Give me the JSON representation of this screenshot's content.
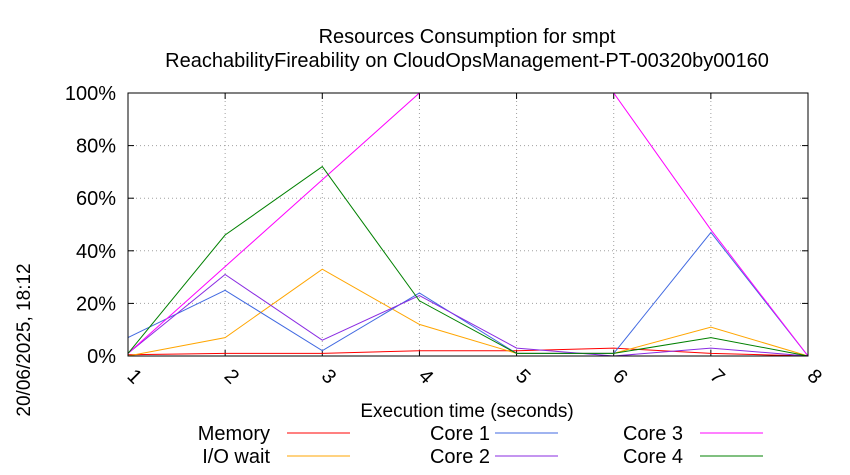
{
  "chart_data": {
    "type": "line",
    "title_line1": "Resources Consumption for smpt",
    "title_line2": "ReachabilityFireability on CloudOpsManagement-PT-00320by00160",
    "xlabel": "Execution time (seconds)",
    "side_label": "20/06/2025, 18:12",
    "x": [
      1,
      2,
      3,
      4,
      5,
      6,
      7,
      8
    ],
    "xlim": [
      1,
      8
    ],
    "ylim": [
      0,
      100
    ],
    "y_ticks": [
      "0%",
      "20%",
      "40%",
      "60%",
      "80%",
      "100%"
    ],
    "x_ticks": [
      "1",
      "2",
      "3",
      "4",
      "5",
      "6",
      "7",
      "8"
    ],
    "grid": true,
    "legend_position": "bottom",
    "series": [
      {
        "name": "Memory",
        "color": "#ff0000",
        "values": [
          0.5,
          1,
          1,
          2,
          2,
          3,
          1,
          0
        ]
      },
      {
        "name": "I/O wait",
        "color": "#ffa500",
        "values": [
          0,
          7,
          33,
          12,
          1,
          1,
          11,
          0
        ]
      },
      {
        "name": "Core 1",
        "color": "#4169e1",
        "values": [
          7,
          25,
          2,
          24,
          1,
          1,
          47,
          0
        ]
      },
      {
        "name": "Core 2",
        "color": "#8a2be2",
        "values": [
          1,
          31,
          6,
          23,
          3,
          0,
          3,
          0
        ]
      },
      {
        "name": "Core 3",
        "color": "#ff00ff",
        "values": [
          1,
          34,
          67,
          100,
          100,
          100,
          48,
          0
        ]
      },
      {
        "name": "Core 4",
        "color": "#008000",
        "values": [
          1,
          46,
          72,
          21,
          1,
          1,
          7,
          0
        ]
      }
    ]
  }
}
